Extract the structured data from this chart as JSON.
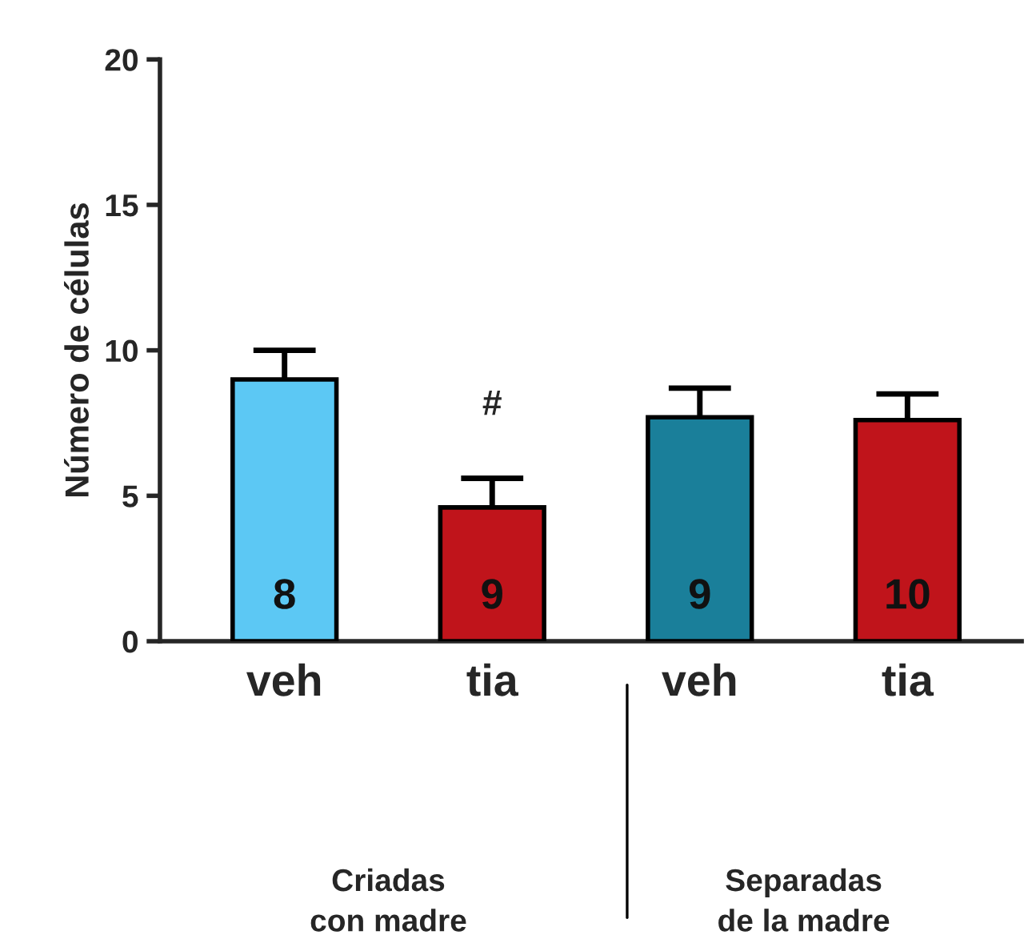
{
  "chart_data": {
    "type": "bar",
    "ylabel": "Número de células",
    "categories": [
      "veh",
      "tia",
      "veh",
      "tia"
    ],
    "values": [
      9.0,
      4.6,
      7.7,
      7.6
    ],
    "errors": [
      1.0,
      1.0,
      1.0,
      0.9
    ],
    "colors": [
      "#5cc8f4",
      "#c0141b",
      "#1a7f9a",
      "#c0141b"
    ],
    "ylim": [
      0,
      20
    ],
    "yticks": [
      0,
      5,
      10,
      15,
      20
    ],
    "grid": false,
    "annotations": [
      "8",
      "9",
      "9",
      "10",
      "#",
      "Criadas\ncon madre",
      "Separadas\nde la madre"
    ]
  }
}
